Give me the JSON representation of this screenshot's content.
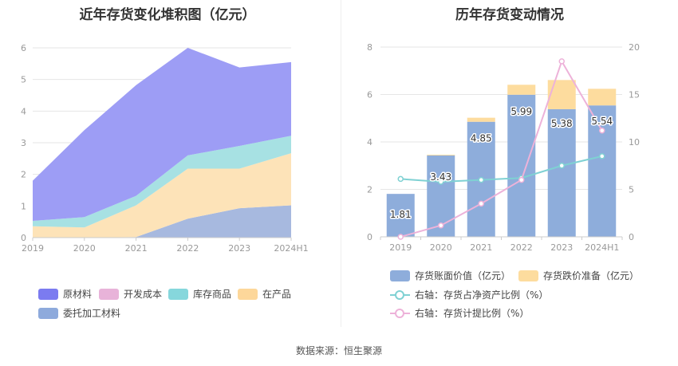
{
  "source_text": "数据来源：恒生聚源",
  "chart_data": [
    {
      "type": "area",
      "stacked": true,
      "title": "近年存货变化堆积图（亿元）",
      "categories": [
        "2019",
        "2020",
        "2021",
        "2022",
        "2023",
        "2024H1"
      ],
      "ylim": [
        0,
        6
      ],
      "yticks": [
        "0",
        "1",
        "2",
        "3",
        "4",
        "5",
        "6"
      ],
      "series": [
        {
          "name": "委托加工材料",
          "color": "#A7B9DF",
          "values": [
            0,
            0,
            0.02,
            0.6,
            0.93,
            1.02
          ]
        },
        {
          "name": "在产品",
          "color": "#FDE3B8",
          "values": [
            0.36,
            0.32,
            1.0,
            1.58,
            1.25,
            1.65
          ]
        },
        {
          "name": "开发成本",
          "color": "#E8B3D9",
          "values": [
            0,
            0,
            0,
            0,
            0,
            0
          ]
        },
        {
          "name": "库存商品",
          "color": "#A7E1E3",
          "values": [
            0.17,
            0.33,
            0.3,
            0.42,
            0.72,
            0.55
          ]
        },
        {
          "name": "原材料",
          "color": "#9D9DF5",
          "values": [
            1.27,
            2.75,
            3.5,
            3.4,
            2.48,
            2.33
          ]
        }
      ],
      "legend": [
        {
          "name": "原材料",
          "color": "#7B7BF0"
        },
        {
          "name": "开发成本",
          "color": "#E8B3D9"
        },
        {
          "name": "库存商品",
          "color": "#86D7DC"
        },
        {
          "name": "在产品",
          "color": "#FDD79A"
        },
        {
          "name": "委托加工材料",
          "color": "#8EAADC"
        }
      ]
    },
    {
      "type": "bar",
      "stacked": true,
      "title": "历年存货变动情况",
      "categories": [
        "2019",
        "2020",
        "2021",
        "2022",
        "2023",
        "2024H1"
      ],
      "ylim": [
        0,
        8
      ],
      "yticks": [
        "0",
        "2",
        "4",
        "6",
        "8"
      ],
      "y2lim": [
        0,
        20
      ],
      "y2ticks": [
        "0",
        "5",
        "10",
        "15",
        "20"
      ],
      "series": [
        {
          "name": "存货账面价值（亿元）",
          "color": "#8EADDB",
          "values": [
            1.81,
            3.43,
            4.85,
            5.99,
            5.38,
            5.54
          ],
          "labels": [
            "1.81",
            "3.43",
            "4.85",
            "5.99",
            "5.38",
            "5.54"
          ]
        },
        {
          "name": "存货跌价准备（亿元）",
          "color": "#FDDC9E",
          "values": [
            0,
            0.03,
            0.17,
            0.42,
            1.23,
            0.7
          ]
        }
      ],
      "line_series": [
        {
          "name": "右轴：存货占净资产比例（%）",
          "color": "#7FD1D3",
          "values": [
            6.1,
            5.8,
            6.0,
            6.2,
            7.5,
            8.5
          ]
        },
        {
          "name": "右轴：存货计提比例（%）",
          "color": "#EDB2D9",
          "values": [
            0,
            1.2,
            3.5,
            6.0,
            18.5,
            11.2
          ]
        }
      ]
    }
  ]
}
